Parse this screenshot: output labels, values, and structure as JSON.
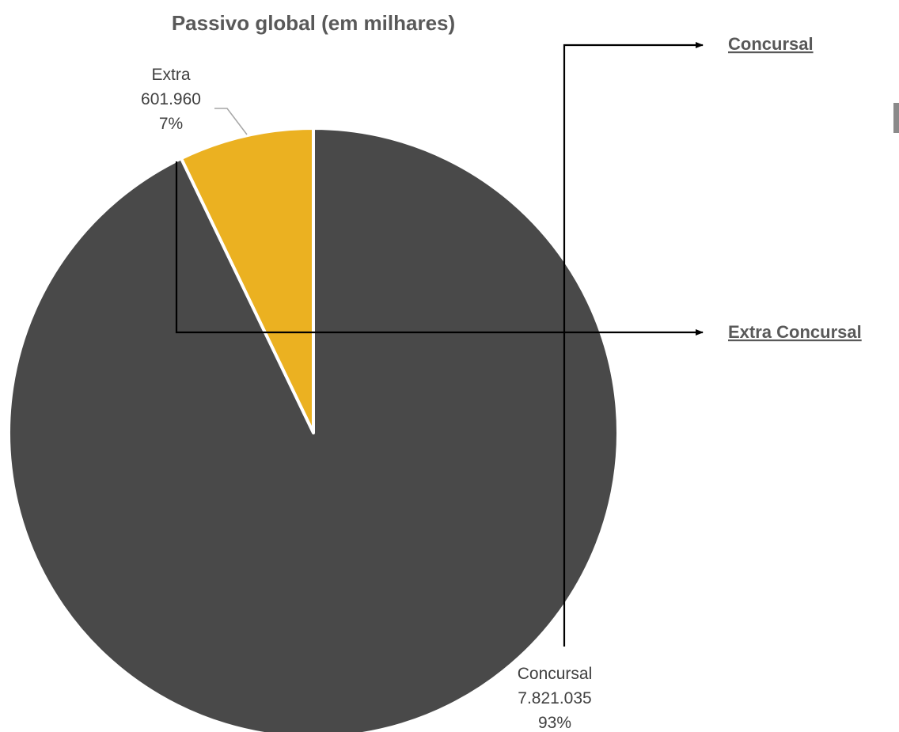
{
  "chart_data": {
    "type": "pie",
    "title": "Passivo global (em milhares)",
    "slices": [
      {
        "name": "Extra",
        "value": 601960,
        "value_label": "601.960",
        "percent_label": "7%",
        "color": "#ebb121"
      },
      {
        "name": "Concursal",
        "value": 7821035,
        "value_label": "7.821.035",
        "percent_label": "93%",
        "color": "#494949"
      }
    ],
    "start_angle_deg": 0,
    "direction": "counterclockwise",
    "legend": "none"
  },
  "links": {
    "concursal": "Concursal",
    "extra_concursal": "Extra Concursal"
  }
}
